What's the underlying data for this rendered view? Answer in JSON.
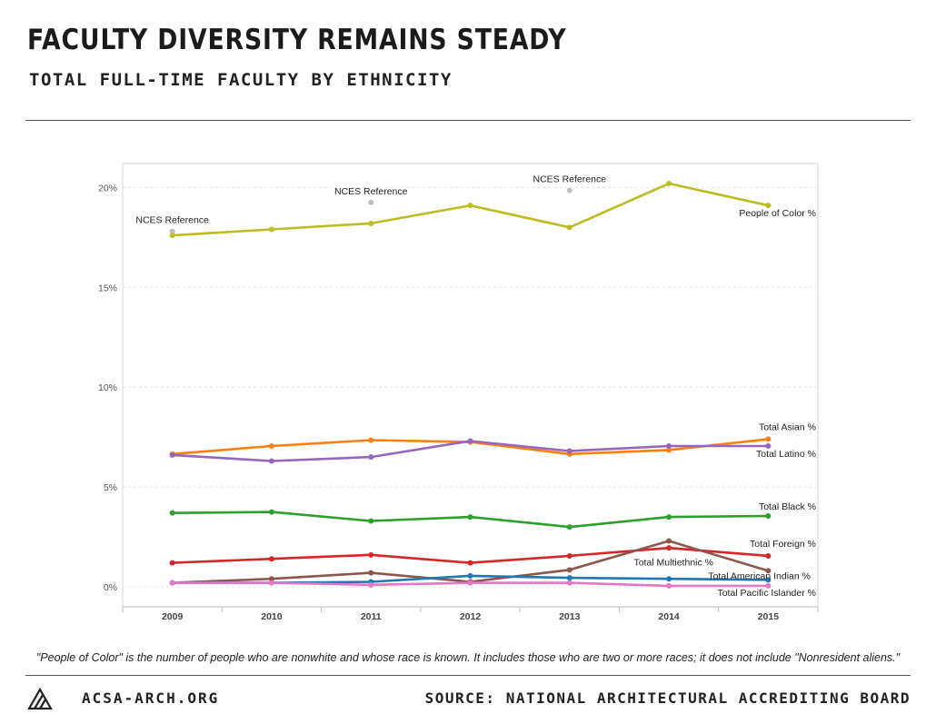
{
  "header": {
    "title": "FACULTY DIVERSITY REMAINS STEADY",
    "subtitle": "TOTAL FULL-TIME FACULTY BY ETHNICITY"
  },
  "footnote": "\"People of Color\" is the number of people who are nonwhite and whose race is known. It includes those who are two or more races; it does not include \"Nonresident aliens.\"",
  "footer": {
    "site": "ACSA-ARCH.ORG",
    "source": "SOURCE: NATIONAL ARCHITECTURAL ACCREDITING BOARD",
    "logo_icon": "acsa-logo-icon"
  },
  "chart_data": {
    "type": "line",
    "x": [
      2009,
      2010,
      2011,
      2012,
      2013,
      2014,
      2015
    ],
    "y_ticks": [
      0,
      5,
      10,
      15,
      20
    ],
    "y_tick_labels": [
      "0%",
      "5%",
      "10%",
      "15%",
      "20%"
    ],
    "ylim": [
      -1,
      21.2
    ],
    "grid": true,
    "series": [
      {
        "name": "People of Color %",
        "color": "#bcbd22",
        "values": [
          17.6,
          17.9,
          18.2,
          19.1,
          18.0,
          20.2,
          19.1
        ]
      },
      {
        "name": "Total Asian %",
        "color": "#ff7f0e",
        "values": [
          6.65,
          7.05,
          7.35,
          7.25,
          6.65,
          6.85,
          7.4
        ]
      },
      {
        "name": "Total Latino %",
        "color": "#9467bd",
        "values": [
          6.6,
          6.3,
          6.5,
          7.3,
          6.8,
          7.05,
          7.05
        ]
      },
      {
        "name": "Total Black %",
        "color": "#2ca02c",
        "values": [
          3.7,
          3.75,
          3.3,
          3.5,
          3.0,
          3.5,
          3.55
        ]
      },
      {
        "name": "Total Foreign %",
        "color": "#d62728",
        "values": [
          1.2,
          1.4,
          1.6,
          1.2,
          1.55,
          1.95,
          1.55
        ]
      },
      {
        "name": "Total Multiethnic %",
        "color": "#8c564b",
        "values": [
          0.2,
          0.4,
          0.7,
          0.25,
          0.85,
          2.3,
          0.8
        ]
      },
      {
        "name": "Total American Indian %",
        "color": "#1f77b4",
        "values": [
          0.2,
          0.2,
          0.25,
          0.55,
          0.45,
          0.4,
          0.35
        ]
      },
      {
        "name": "Total Pacific Islander %",
        "color": "#e377c2",
        "values": [
          0.2,
          0.2,
          0.1,
          0.2,
          0.2,
          0.05,
          0.05
        ]
      }
    ],
    "reference_points": {
      "label": "NCES Reference",
      "color": "#bfbfbf",
      "points": [
        {
          "x": 2009,
          "y": 17.8
        },
        {
          "x": 2011,
          "y": 19.25
        },
        {
          "x": 2013,
          "y": 19.85
        }
      ]
    }
  }
}
